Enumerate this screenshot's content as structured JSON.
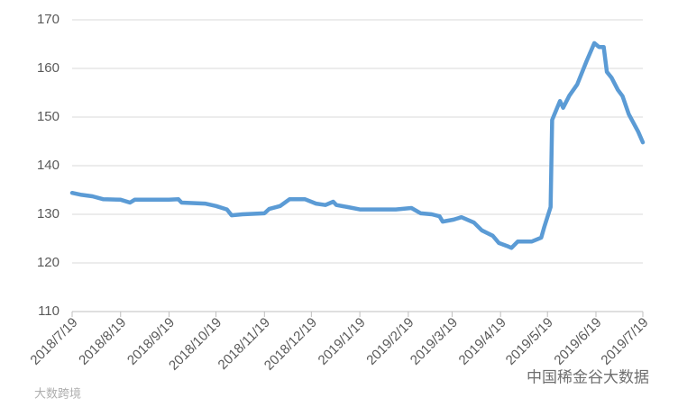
{
  "chart_data": {
    "type": "line",
    "x": [
      "2018/7/19",
      "2018/7/25",
      "2018/8/1",
      "2018/8/8",
      "2018/8/19",
      "2018/8/25",
      "2018/8/28",
      "2018/9/19",
      "2018/9/25",
      "2018/9/27",
      "2018/10/12",
      "2018/10/19",
      "2018/10/26",
      "2018/10/29",
      "2018/11/5",
      "2018/11/19",
      "2018/11/22",
      "2018/11/29",
      "2018/12/5",
      "2018/12/15",
      "2018/12/22",
      "2018/12/28",
      "2019/1/2",
      "2019/1/4",
      "2019/1/11",
      "2019/1/19",
      "2019/2/11",
      "2019/2/21",
      "2019/2/27",
      "2019/3/6",
      "2019/3/11",
      "2019/3/13",
      "2019/3/20",
      "2019/3/25",
      "2019/4/2",
      "2019/4/7",
      "2019/4/14",
      "2019/4/18",
      "2019/4/23",
      "2019/4/26",
      "2019/4/30",
      "2019/5/9",
      "2019/5/15",
      "2019/5/17",
      "2019/5/21",
      "2019/5/22",
      "2019/5/27",
      "2019/5/29",
      "2019/6/2",
      "2019/6/7",
      "2019/6/13",
      "2019/6/18",
      "2019/6/21",
      "2019/6/24",
      "2019/6/26",
      "2019/6/29",
      "2019/7/3",
      "2019/7/6",
      "2019/7/10",
      "2019/7/16",
      "2019/7/19"
    ],
    "series": [
      {
        "color": "#5b9bd5",
        "values": [
          134.4,
          134,
          133.7,
          133.1,
          133,
          132.4,
          133,
          133,
          133.1,
          132.4,
          132.2,
          131.7,
          131,
          129.8,
          130,
          130.2,
          131.1,
          131.7,
          133.1,
          133.1,
          132.2,
          131.9,
          132.6,
          131.9,
          131.5,
          131,
          131,
          131.3,
          130.2,
          130,
          129.6,
          128.5,
          128.9,
          129.4,
          128.3,
          126.7,
          125.6,
          124.1,
          123.5,
          123.1,
          124.4,
          124.4,
          125.2,
          127.4,
          131.5,
          149.4,
          153.3,
          151.9,
          154.4,
          156.7,
          161.5,
          165.2,
          164.4,
          164.4,
          159.3,
          158.1,
          155.6,
          154.3,
          150.6,
          147,
          144.8
        ]
      }
    ],
    "xlim": [
      "2018/7/19",
      "2019/7/19"
    ],
    "xticks": [
      "2018/7/19",
      "2018/8/19",
      "2018/9/19",
      "2018/10/19",
      "2018/11/19",
      "2018/12/19",
      "2019/1/19",
      "2019/2/19",
      "2019/3/19",
      "2019/4/19",
      "2019/5/19",
      "2019/6/19",
      "2019/7/19"
    ],
    "ylim": [
      110,
      170
    ],
    "yticks": [
      110,
      120,
      130,
      140,
      150,
      160,
      170
    ],
    "grid": true
  },
  "watermarks": [
    "大数跨境",
    "中国稀金谷大数据"
  ]
}
